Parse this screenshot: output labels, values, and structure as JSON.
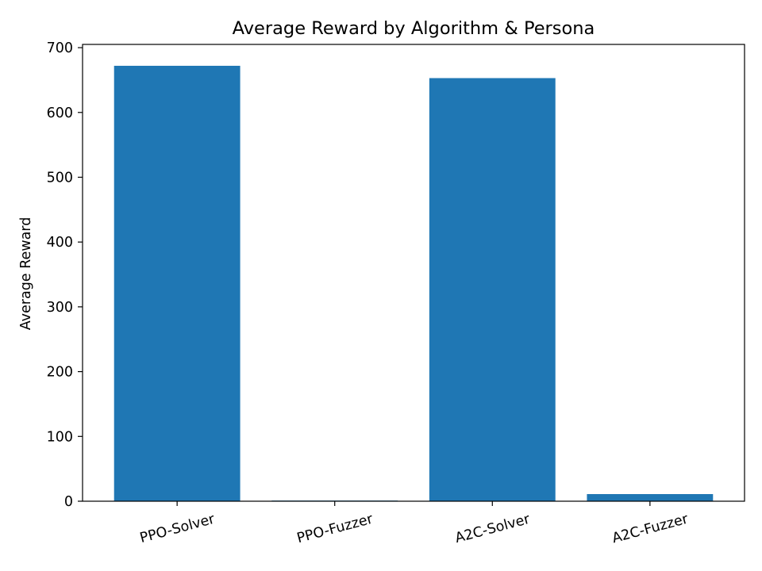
{
  "chart_data": {
    "type": "bar",
    "title": "Average Reward by Algorithm & Persona",
    "xlabel": "",
    "ylabel": "Average Reward",
    "categories": [
      "PPO-Solver",
      "PPO-Fuzzer",
      "A2C-Solver",
      "A2C-Fuzzer"
    ],
    "values": [
      672,
      1,
      653,
      11
    ],
    "ylim": [
      0,
      705
    ],
    "yticks": [
      0,
      100,
      200,
      300,
      400,
      500,
      600,
      700
    ],
    "bar_color": "#1f77b4",
    "grid": false,
    "legend": "none"
  }
}
